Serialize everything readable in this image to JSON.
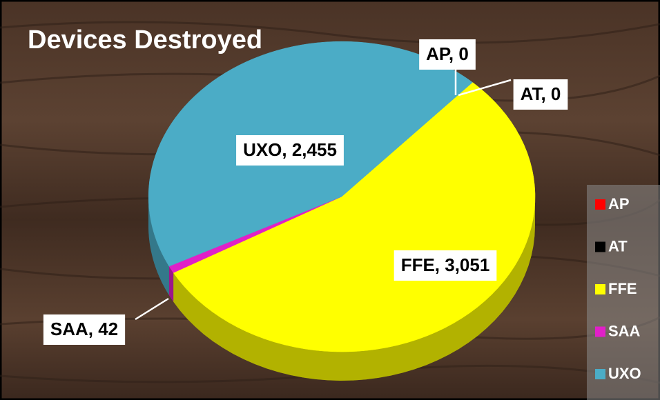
{
  "chart_data": {
    "type": "pie",
    "title": "Devices Destroyed",
    "categories": [
      "AP",
      "AT",
      "FFE",
      "SAA",
      "UXO"
    ],
    "values": [
      0,
      0,
      3051,
      42,
      2455
    ],
    "value_labels": [
      "AP, 0",
      "AT, 0",
      "FFE, 3,051",
      "SAA, 42",
      "UXO, 2,455"
    ],
    "colors": [
      "#ff0000",
      "#000000",
      "#ffff00",
      "#e020c8",
      "#4bacc6"
    ],
    "legend": "right"
  }
}
